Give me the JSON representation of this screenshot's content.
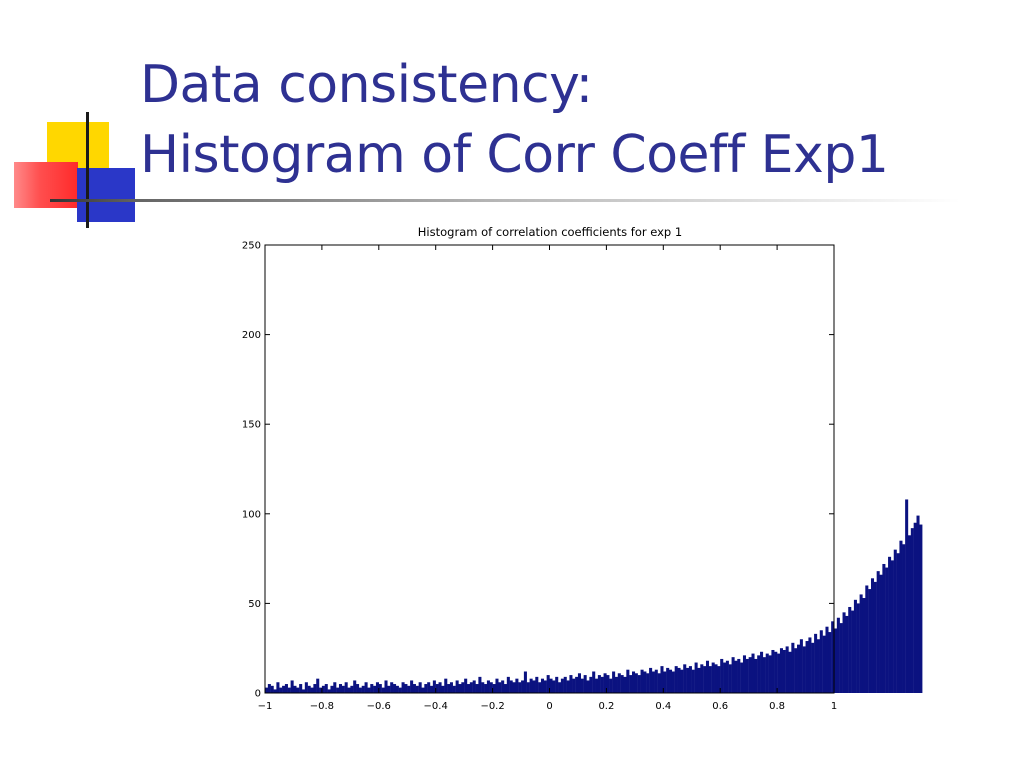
{
  "slide": {
    "title_line1": "Data consistency:",
    "title_line2": "Histogram of Corr Coeff Exp1"
  },
  "colors": {
    "title": "#2e3192",
    "bars": "#0b1280",
    "deco_yellow": "#ffd700",
    "deco_blue": "#2a37c8",
    "deco_red": "#ff4f4f"
  },
  "chart_data": {
    "type": "bar",
    "title": "Histogram of correlation coefficients for exp 1",
    "xlabel": "",
    "ylabel": "",
    "xlim": [
      -1,
      1
    ],
    "ylim": [
      0,
      250
    ],
    "x_ticks": [
      -1,
      -0.8,
      -0.6,
      -0.4,
      -0.2,
      0,
      0.2,
      0.4,
      0.6,
      0.8,
      1
    ],
    "x_tick_labels": [
      "−1",
      "−0.8",
      "−0.6",
      "−0.4",
      "−0.2",
      "0",
      "0.2",
      "0.4",
      "0.6",
      "0.8",
      "1"
    ],
    "y_ticks": [
      0,
      50,
      100,
      150,
      200,
      250
    ],
    "y_tick_labels": [
      "0",
      "50",
      "100",
      "150",
      "200",
      "250"
    ],
    "grid": false,
    "bin_width": 0.01,
    "bin_centers_start": -0.995,
    "values": [
      3,
      5,
      4,
      2,
      6,
      3,
      4,
      5,
      3,
      7,
      4,
      3,
      5,
      2,
      6,
      4,
      3,
      5,
      8,
      3,
      4,
      5,
      2,
      4,
      6,
      3,
      5,
      4,
      6,
      3,
      4,
      7,
      5,
      3,
      4,
      6,
      3,
      5,
      4,
      6,
      5,
      3,
      7,
      4,
      6,
      5,
      4,
      3,
      6,
      5,
      4,
      7,
      5,
      4,
      6,
      3,
      5,
      6,
      4,
      7,
      5,
      6,
      4,
      8,
      5,
      6,
      4,
      7,
      5,
      6,
      8,
      5,
      6,
      7,
      5,
      9,
      6,
      5,
      7,
      6,
      5,
      8,
      6,
      7,
      5,
      9,
      7,
      6,
      8,
      6,
      7,
      12,
      6,
      8,
      7,
      9,
      6,
      8,
      7,
      10,
      8,
      7,
      9,
      6,
      8,
      9,
      7,
      10,
      8,
      9,
      11,
      8,
      10,
      7,
      9,
      12,
      8,
      10,
      9,
      11,
      10,
      8,
      12,
      9,
      11,
      10,
      9,
      13,
      10,
      12,
      11,
      10,
      13,
      12,
      11,
      14,
      12,
      13,
      11,
      15,
      12,
      14,
      13,
      12,
      15,
      14,
      13,
      16,
      14,
      15,
      13,
      17,
      14,
      16,
      15,
      18,
      15,
      17,
      16,
      15,
      19,
      17,
      18,
      16,
      20,
      18,
      19,
      17,
      21,
      19,
      20,
      22,
      19,
      21,
      23,
      20,
      22,
      21,
      24,
      23,
      22,
      25,
      24,
      26,
      23,
      28,
      25,
      27,
      30,
      26,
      29,
      31,
      28,
      33,
      30,
      35,
      32,
      37,
      34,
      40,
      36,
      42,
      39,
      45,
      43,
      48,
      46,
      52,
      50,
      55,
      53,
      60,
      58,
      64,
      62,
      68,
      66,
      72,
      70,
      76,
      74,
      80,
      78,
      85,
      83,
      108,
      88,
      92,
      95,
      99,
      94
    ]
  }
}
